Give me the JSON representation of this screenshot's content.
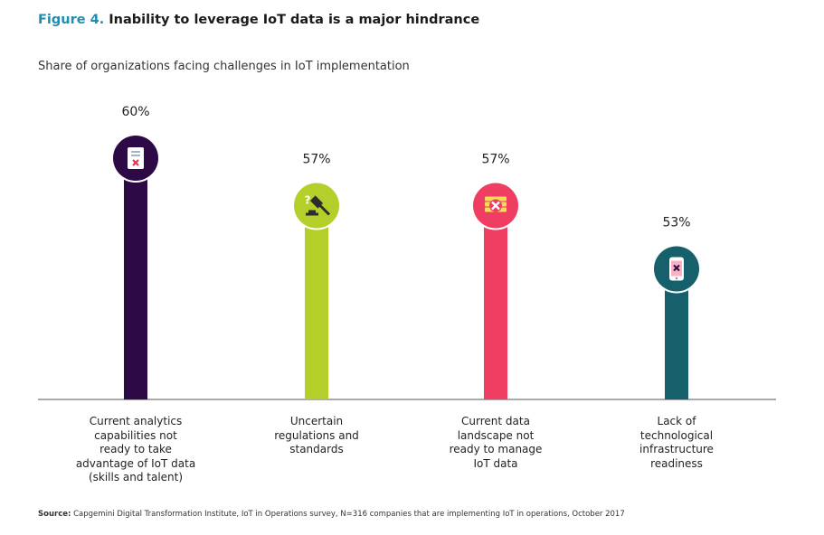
{
  "figure": {
    "number": "Figure 4.",
    "title": "Inability to leverage IoT data is a major hindrance",
    "subtitle": "Share of organizations facing challenges in IoT implementation"
  },
  "chart_data": {
    "type": "bar",
    "categories": [
      "Current analytics capabilities not ready to take advantage of IoT data (skills and talent)",
      "Uncertain regulations and standards",
      "Current data landscape not ready to manage IoT data",
      "Lack of technological infrastructure readiness"
    ],
    "values": [
      60,
      57,
      57,
      53
    ],
    "value_labels": [
      "60%",
      "57%",
      "57%",
      "53%"
    ],
    "colors": [
      "#2d0a45",
      "#b5cf2a",
      "#f03e63",
      "#16606b"
    ],
    "icons": [
      "clipboard-x-icon",
      "gavel-question-icon",
      "server-x-icon",
      "phone-x-icon"
    ],
    "xlabel": "",
    "ylabel": "",
    "grid": false,
    "legend": "none"
  },
  "labels": {
    "cat1": [
      "Current analytics",
      "capabilities not",
      "ready to take",
      "advantage of IoT data",
      "(skills and talent)"
    ],
    "cat2": [
      "Uncertain",
      "regulations and",
      "standards"
    ],
    "cat3": [
      "Current data",
      "landscape not",
      "ready to manage",
      "IoT data"
    ],
    "cat4": [
      "Lack of",
      "technological",
      "infrastructure",
      "readiness"
    ]
  },
  "source": {
    "label": "Source:",
    "text": " Capgemini Digital Transformation Institute, IoT in Operations survey, N=316 companies that are implementing IoT in operations, October 2017"
  }
}
